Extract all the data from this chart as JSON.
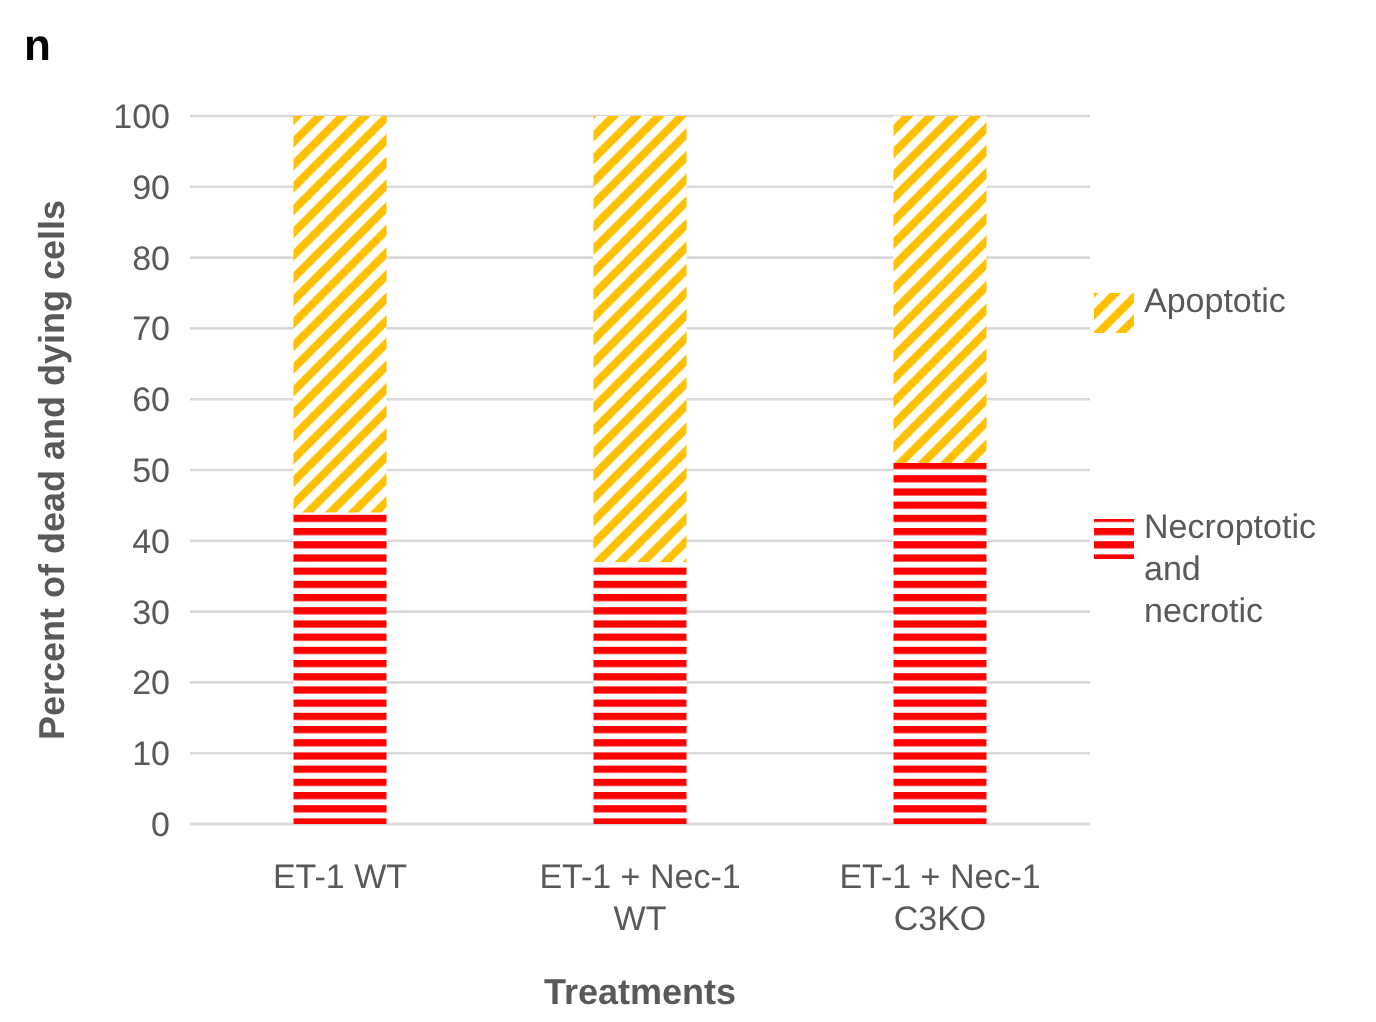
{
  "chart_data": {
    "type": "bar",
    "stacked": true,
    "ylabel": "Percent of dead and dying cells",
    "xlabel": "Treatments",
    "annotations": [
      "n"
    ],
    "categories": [
      "ET-1 WT",
      "ET-1 + Nec-1 WT",
      "ET-1 + Nec-1 C3KO"
    ],
    "series": [
      {
        "name": "Necroptotic and necrotic",
        "color": "#ff0000",
        "values": [
          44,
          37,
          51
        ]
      },
      {
        "name": "Apoptotic",
        "color": "#ffc000",
        "values": [
          56,
          63,
          49
        ]
      }
    ],
    "ylim": [
      0,
      100
    ],
    "yticks": [
      0,
      10,
      20,
      30,
      40,
      50,
      60,
      70,
      80,
      90,
      100
    ],
    "grid": "y",
    "legend": "right"
  }
}
